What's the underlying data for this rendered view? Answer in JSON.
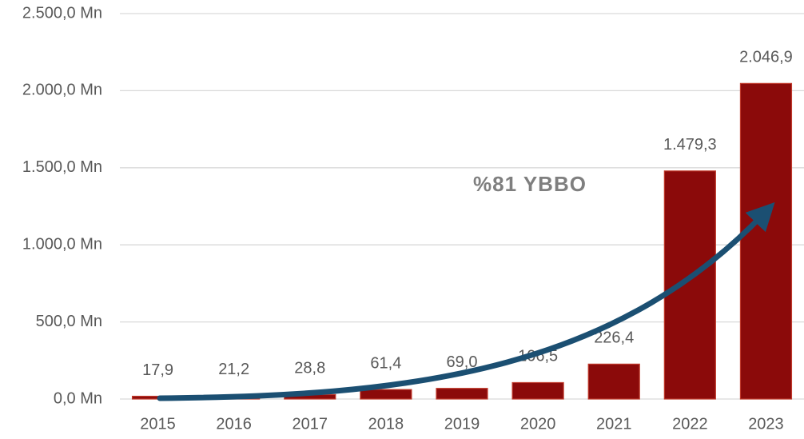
{
  "chart_data": {
    "type": "bar",
    "categories": [
      "2015",
      "2016",
      "2017",
      "2018",
      "2019",
      "2020",
      "2021",
      "2022",
      "2023"
    ],
    "values": [
      17.9,
      21.2,
      28.8,
      61.4,
      69.0,
      106.5,
      226.4,
      1479.3,
      2046.9
    ],
    "value_labels": [
      "17,9",
      "21,2",
      "28,8",
      "61,4",
      "69,0",
      "106,5",
      "226,4",
      "1.479,3",
      "2.046,9"
    ],
    "color": "#8b0a0a",
    "ylim": [
      0,
      2500
    ],
    "yticks": [
      {
        "value": 0,
        "label": "0,0 Mn"
      },
      {
        "value": 500,
        "label": "500,0 Mn"
      },
      {
        "value": 1000,
        "label": "1.000,0 Mn"
      },
      {
        "value": 1500,
        "label": "1.500,0 Mn"
      },
      {
        "value": 2000,
        "label": "2.000,0 Mn"
      },
      {
        "value": 2500,
        "label": "2.500,0 Mn"
      }
    ],
    "grid": true,
    "annotation": "%81 YBBO"
  }
}
